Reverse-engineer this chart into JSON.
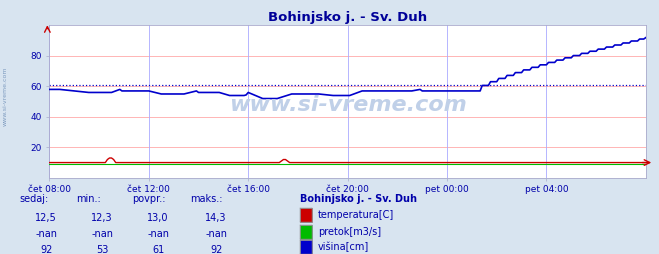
{
  "title": "Bohinjsko j. - Sv. Duh",
  "title_color": "#000099",
  "bg_color": "#d8e4f0",
  "plot_bg_color": "#ffffff",
  "grid_color_h": "#ffaaaa",
  "grid_color_v": "#aaaaff",
  "xlim": [
    0,
    288
  ],
  "ylim": [
    0,
    100
  ],
  "yticks": [
    20,
    40,
    60,
    80
  ],
  "xtick_labels": [
    "čet 08:00",
    "čet 12:00",
    "čet 16:00",
    "čet 20:00",
    "pet 00:00",
    "pet 04:00"
  ],
  "xtick_positions": [
    0,
    48,
    96,
    144,
    192,
    240
  ],
  "avg_line_value": 61,
  "avg_line_color": "#0000cc",
  "temp_color": "#cc0000",
  "flow_color": "#00bb00",
  "height_color": "#0000cc",
  "watermark": "www.si-vreme.com",
  "watermark_color": "#c0d0e8",
  "legend_title": "Bohinjsko j. - Sv. Duh",
  "legend_title_color": "#0000aa",
  "table_headers": [
    "sedaj:",
    "min.:",
    "povpr.:",
    "maks.:"
  ],
  "table_color": "#0000aa",
  "table_rows": [
    [
      "12,5",
      "12,3",
      "13,0",
      "14,3"
    ],
    [
      "-nan",
      "-nan",
      "-nan",
      "-nan"
    ],
    [
      "92",
      "53",
      "61",
      "92"
    ]
  ],
  "legend_items": [
    {
      "label": "temperatura[C]",
      "color": "#cc0000"
    },
    {
      "label": "pretok[m3/s]",
      "color": "#00bb00"
    },
    {
      "label": "višina[cm]",
      "color": "#0000cc"
    }
  ]
}
